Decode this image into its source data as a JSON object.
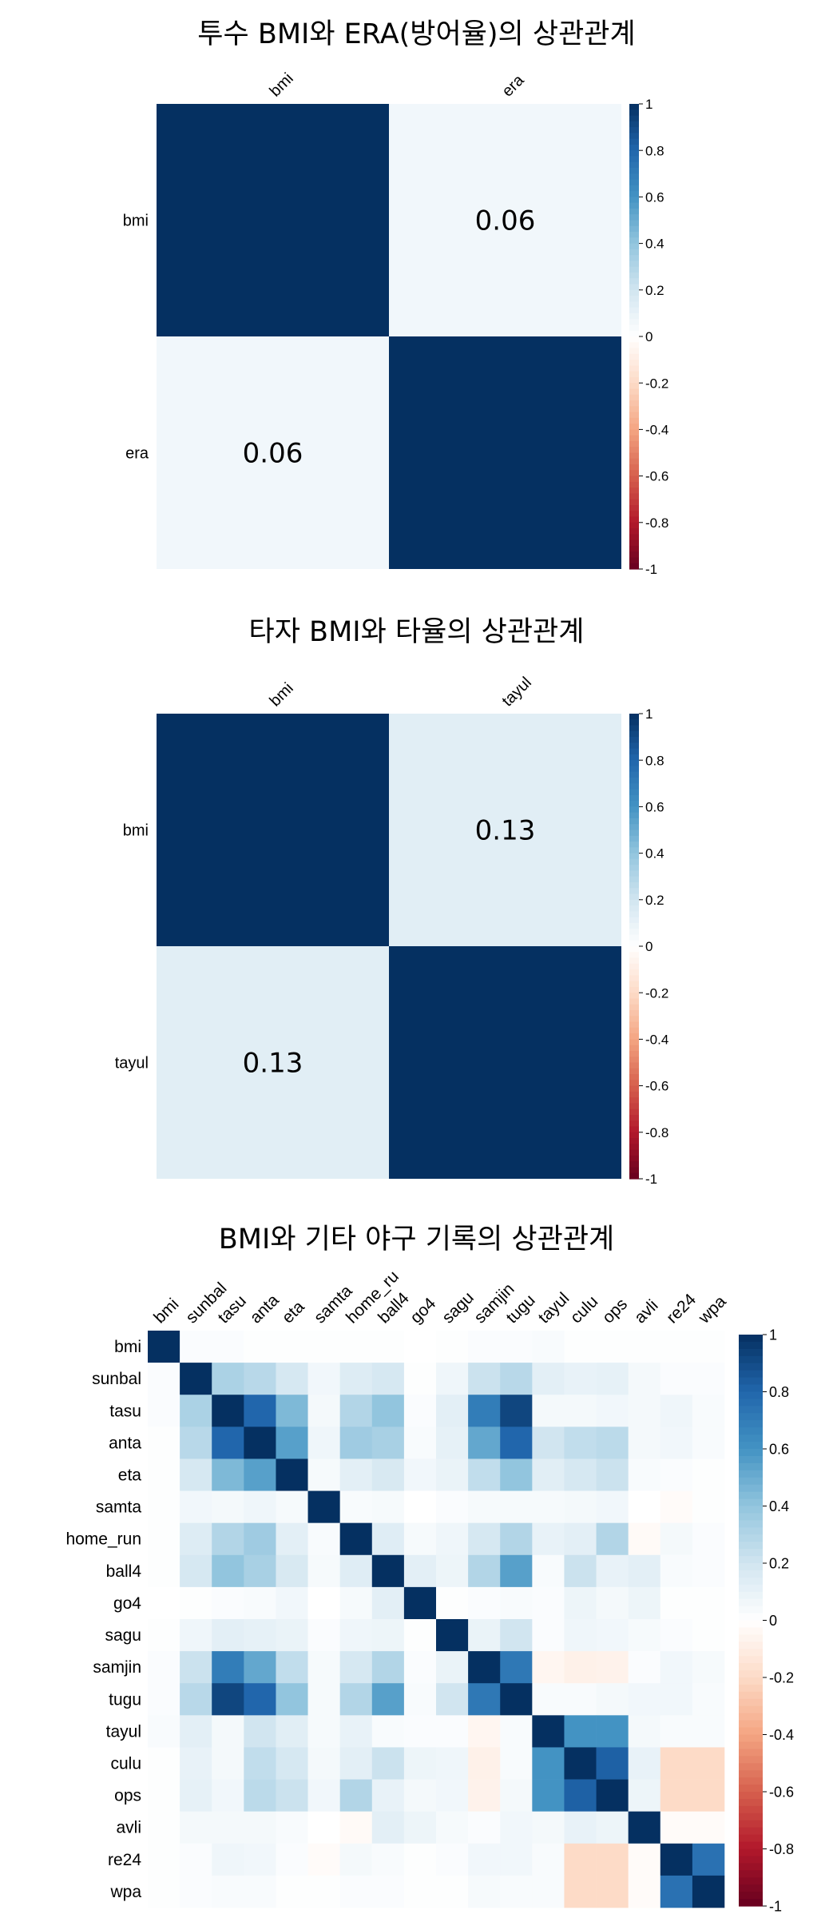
{
  "chart_data": [
    {
      "type": "heatmap",
      "title": "투수 BMI와 ERA(방어율)의 상관관계",
      "variables": [
        "bmi",
        "era"
      ],
      "matrix": [
        [
          1,
          0.06
        ],
        [
          0.06,
          1
        ]
      ],
      "value_labels": [
        [
          "",
          "0.06"
        ],
        [
          "0.06",
          ""
        ]
      ],
      "colorbar_range": [
        -1,
        1
      ],
      "colorbar_ticks": [
        "1",
        "0.8",
        "0.6",
        "0.4",
        "0.2",
        "0",
        "-0.2",
        "-0.4",
        "-0.6",
        "-0.8",
        "-1"
      ]
    },
    {
      "type": "heatmap",
      "title": "타자 BMI와 타율의 상관관계",
      "variables": [
        "bmi",
        "tayul"
      ],
      "matrix": [
        [
          1,
          0.13
        ],
        [
          0.13,
          1
        ]
      ],
      "value_labels": [
        [
          "",
          "0.13"
        ],
        [
          "0.13",
          ""
        ]
      ],
      "colorbar_range": [
        -1,
        1
      ],
      "colorbar_ticks": [
        "1",
        "0.8",
        "0.6",
        "0.4",
        "0.2",
        "0",
        "-0.2",
        "-0.4",
        "-0.6",
        "-0.8",
        "-1"
      ]
    },
    {
      "type": "heatmap",
      "title": "BMI와 기타 야구 기록의 상관관계",
      "variables": [
        "bmi",
        "sunbal",
        "tasu",
        "anta",
        "eta",
        "samta",
        "home_run",
        "ball4",
        "go4",
        "sagu",
        "samjin",
        "tugu",
        "tayul",
        "culu",
        "ops",
        "avli",
        "re24",
        "wpa"
      ],
      "column_labels": [
        "bmi",
        "sunbal",
        "tasu",
        "anta",
        "eta",
        "samta",
        "home_ru",
        "ball4",
        "go4",
        "sagu",
        "samjin",
        "tugu",
        "tayul",
        "culu",
        "ops",
        "avli",
        "re24",
        "wpa"
      ],
      "matrix": [
        [
          1,
          0.02,
          0.02,
          0.01,
          0.01,
          0.01,
          0.01,
          0.01,
          0.0,
          0.01,
          0.02,
          0.02,
          0.03,
          0.01,
          0.01,
          0.01,
          0.01,
          0.01
        ],
        [
          0.02,
          1,
          0.32,
          0.28,
          0.18,
          0.06,
          0.15,
          0.18,
          0.01,
          0.07,
          0.22,
          0.28,
          0.12,
          0.1,
          0.11,
          0.05,
          0.02,
          0.02
        ],
        [
          0.02,
          0.32,
          1,
          0.8,
          0.45,
          0.05,
          0.3,
          0.4,
          0.02,
          0.12,
          0.7,
          0.92,
          0.05,
          0.05,
          0.06,
          0.05,
          0.07,
          0.03
        ],
        [
          0.01,
          0.28,
          0.8,
          1,
          0.55,
          0.07,
          0.36,
          0.33,
          0.03,
          0.11,
          0.52,
          0.8,
          0.2,
          0.25,
          0.27,
          0.05,
          0.06,
          0.03
        ],
        [
          0.01,
          0.18,
          0.45,
          0.55,
          1,
          0.04,
          0.12,
          0.17,
          0.06,
          0.09,
          0.25,
          0.4,
          0.13,
          0.18,
          0.22,
          0.03,
          0.02,
          0.01
        ],
        [
          0.01,
          0.06,
          0.05,
          0.07,
          0.04,
          1,
          0.03,
          0.04,
          0.0,
          0.02,
          0.04,
          0.04,
          0.04,
          0.05,
          0.06,
          0.0,
          -0.02,
          0.01
        ],
        [
          0.01,
          0.15,
          0.3,
          0.36,
          0.12,
          0.03,
          1,
          0.14,
          0.04,
          0.07,
          0.18,
          0.3,
          0.1,
          0.12,
          0.3,
          -0.03,
          0.05,
          0.02
        ],
        [
          0.01,
          0.18,
          0.4,
          0.33,
          0.17,
          0.04,
          0.14,
          1,
          0.12,
          0.08,
          0.3,
          0.55,
          0.03,
          0.22,
          0.1,
          0.12,
          0.03,
          0.02
        ],
        [
          0.0,
          0.01,
          0.02,
          0.03,
          0.06,
          0.0,
          0.04,
          0.12,
          1,
          0.01,
          0.02,
          0.03,
          0.02,
          0.08,
          0.05,
          0.08,
          0.01,
          0.01
        ],
        [
          0.01,
          0.07,
          0.12,
          0.11,
          0.09,
          0.02,
          0.07,
          0.08,
          0.01,
          1,
          0.09,
          0.2,
          0.02,
          0.07,
          0.06,
          0.04,
          0.02,
          0.01
        ],
        [
          0.02,
          0.22,
          0.7,
          0.52,
          0.25,
          0.04,
          0.18,
          0.3,
          0.02,
          0.09,
          1,
          0.72,
          -0.05,
          -0.08,
          -0.07,
          0.02,
          0.06,
          0.04
        ],
        [
          0.02,
          0.28,
          0.92,
          0.8,
          0.4,
          0.04,
          0.3,
          0.55,
          0.03,
          0.2,
          0.72,
          1,
          0.03,
          0.03,
          0.05,
          0.06,
          0.06,
          0.03
        ],
        [
          0.03,
          0.12,
          0.05,
          0.2,
          0.13,
          0.04,
          0.1,
          0.03,
          0.02,
          0.02,
          -0.05,
          0.03,
          1,
          0.6,
          0.6,
          0.05,
          0.03,
          0.03
        ],
        [
          0.01,
          0.1,
          0.05,
          0.25,
          0.18,
          0.05,
          0.12,
          0.22,
          0.08,
          0.07,
          -0.08,
          0.03,
          0.6,
          1,
          0.82,
          0.1,
          -0.2,
          -0.2
        ],
        [
          0.01,
          0.11,
          0.06,
          0.27,
          0.22,
          0.06,
          0.3,
          0.1,
          0.05,
          0.06,
          -0.07,
          0.05,
          0.6,
          0.82,
          1,
          0.08,
          -0.2,
          -0.2
        ],
        [
          0.01,
          0.05,
          0.05,
          0.05,
          0.03,
          0.0,
          -0.03,
          0.12,
          0.08,
          0.04,
          0.02,
          0.06,
          0.05,
          0.1,
          0.08,
          1,
          -0.02,
          -0.02
        ],
        [
          0.01,
          0.02,
          0.07,
          0.06,
          0.02,
          -0.02,
          0.05,
          0.03,
          0.01,
          0.02,
          0.06,
          0.06,
          0.03,
          -0.2,
          -0.2,
          -0.02,
          1,
          0.75
        ],
        [
          0.01,
          0.02,
          0.03,
          0.03,
          0.01,
          0.01,
          0.02,
          0.02,
          0.01,
          0.01,
          0.04,
          0.03,
          0.03,
          -0.2,
          -0.2,
          -0.02,
          0.75,
          1
        ]
      ],
      "colorbar_range": [
        -1,
        1
      ],
      "colorbar_ticks": [
        "1",
        "0.8",
        "0.6",
        "0.4",
        "0.2",
        "0",
        "-0.2",
        "-0.4",
        "-0.6",
        "-0.8",
        "-1"
      ]
    }
  ]
}
